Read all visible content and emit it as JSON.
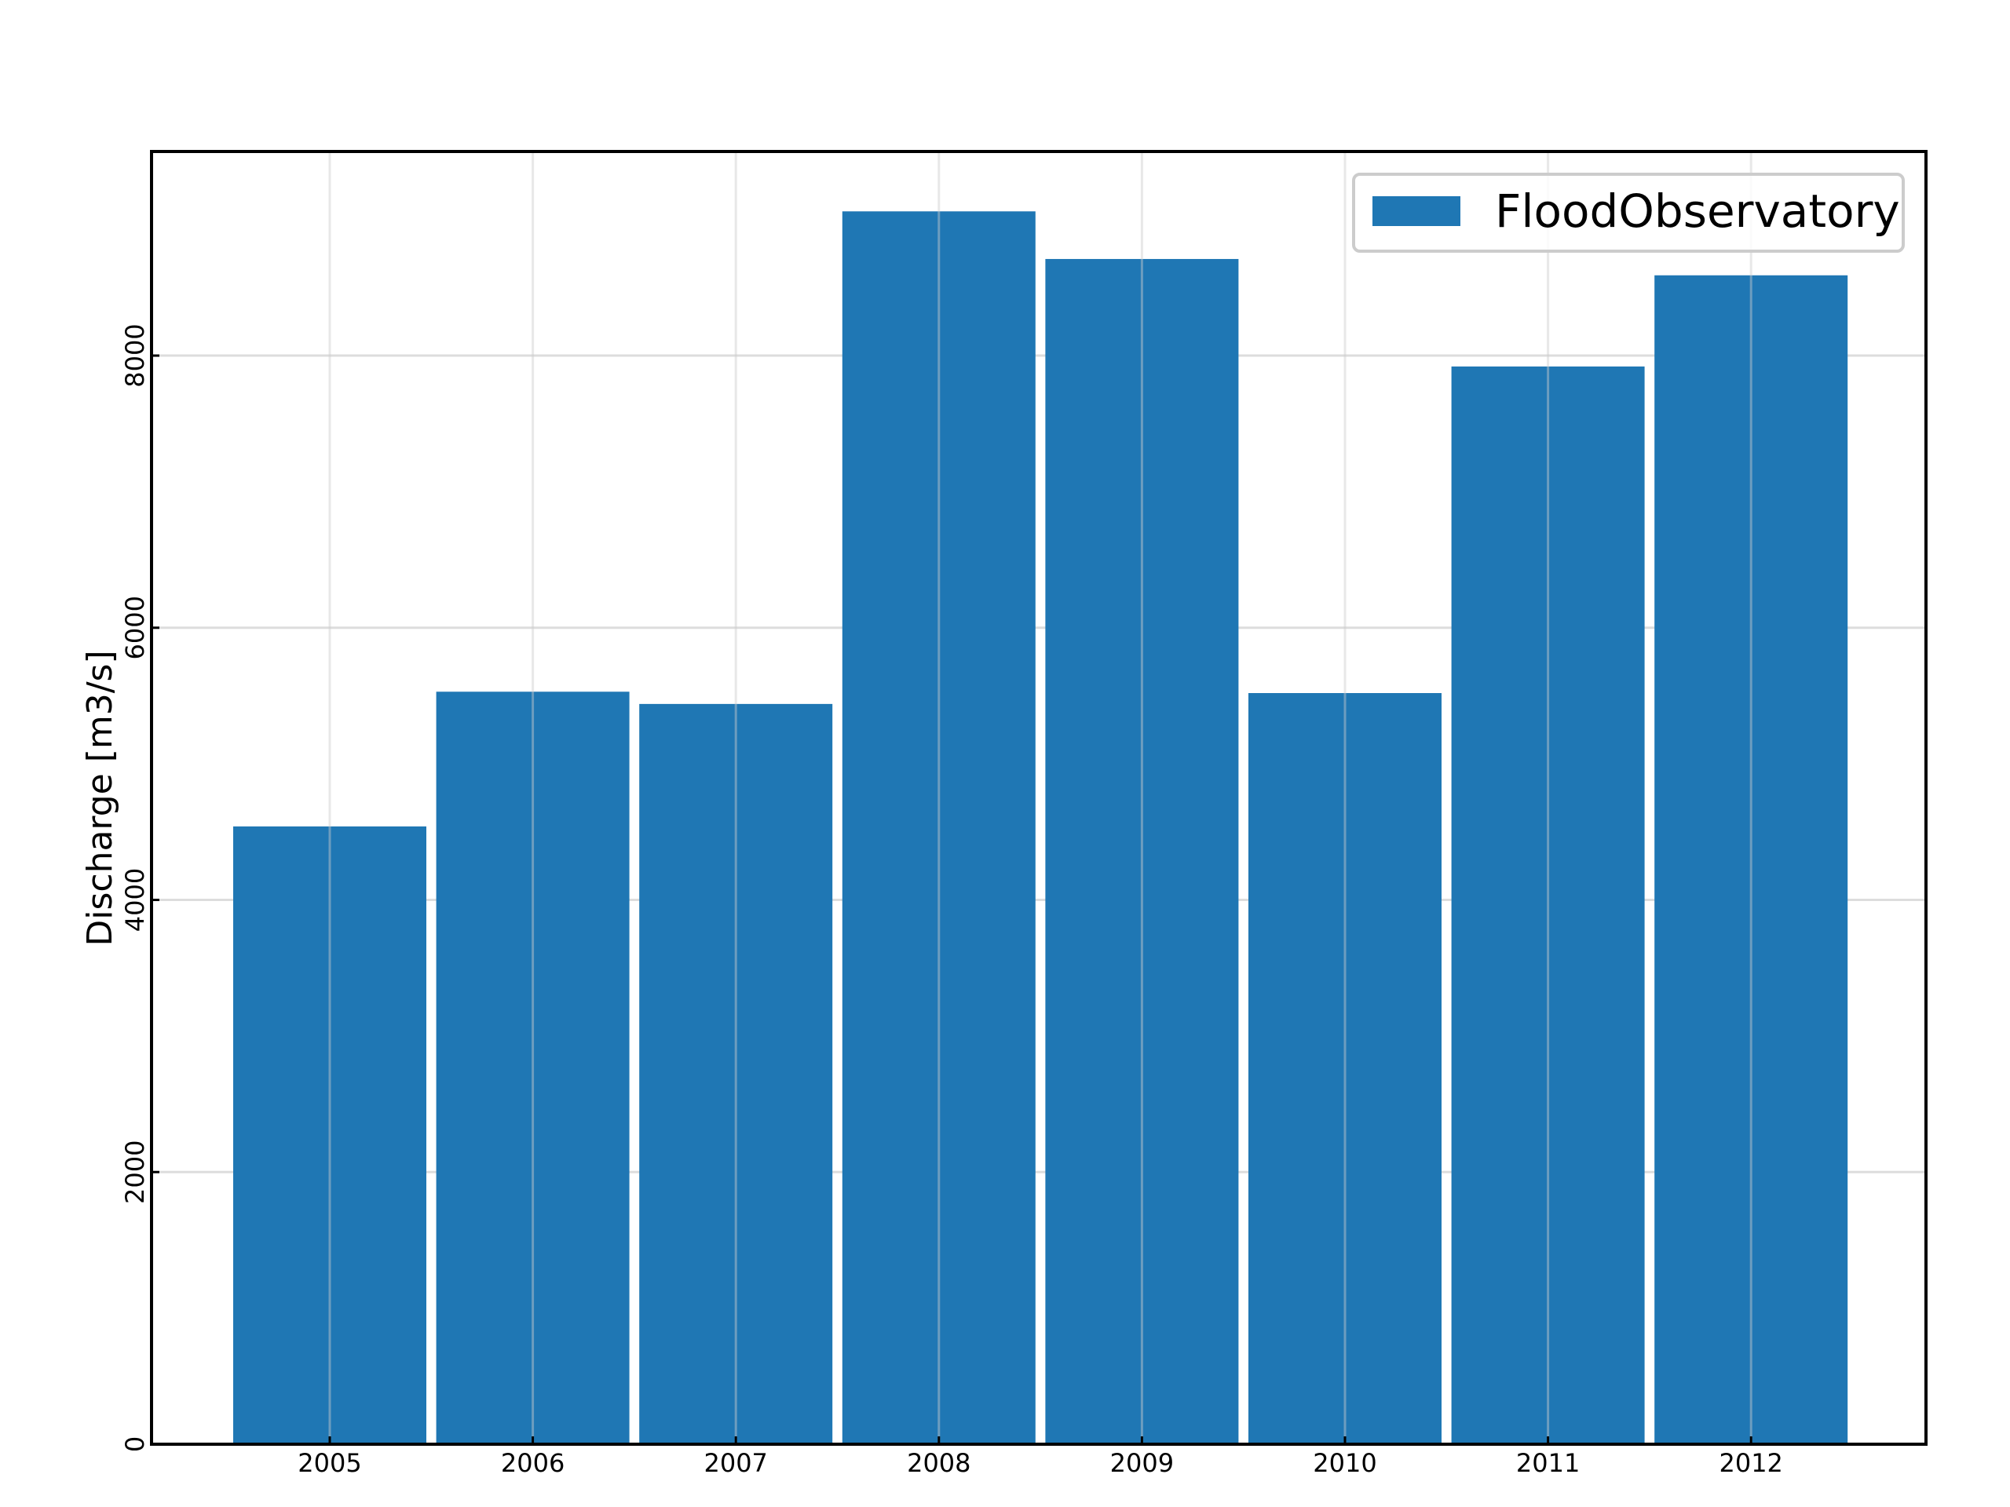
{
  "chart_data": {
    "type": "bar",
    "title": "",
    "xlabel": "",
    "ylabel": "Discharge [m3/s]",
    "categories": [
      "2005",
      "2006",
      "2007",
      "2008",
      "2009",
      "2010",
      "2011",
      "2012"
    ],
    "series": [
      {
        "name": "FloodObservatory",
        "color": "#1f77b4",
        "values": [
          4540,
          5530,
          5440,
          9060,
          8710,
          5520,
          7920,
          8590
        ]
      }
    ],
    "yticks": [
      0,
      2000,
      4000,
      6000,
      8000
    ],
    "ytick_labels": [
      "0",
      "2000",
      "4000",
      "6000",
      "8000"
    ],
    "ylim": [
      0,
      9500
    ],
    "grid": true,
    "legend_position": "top-right"
  }
}
